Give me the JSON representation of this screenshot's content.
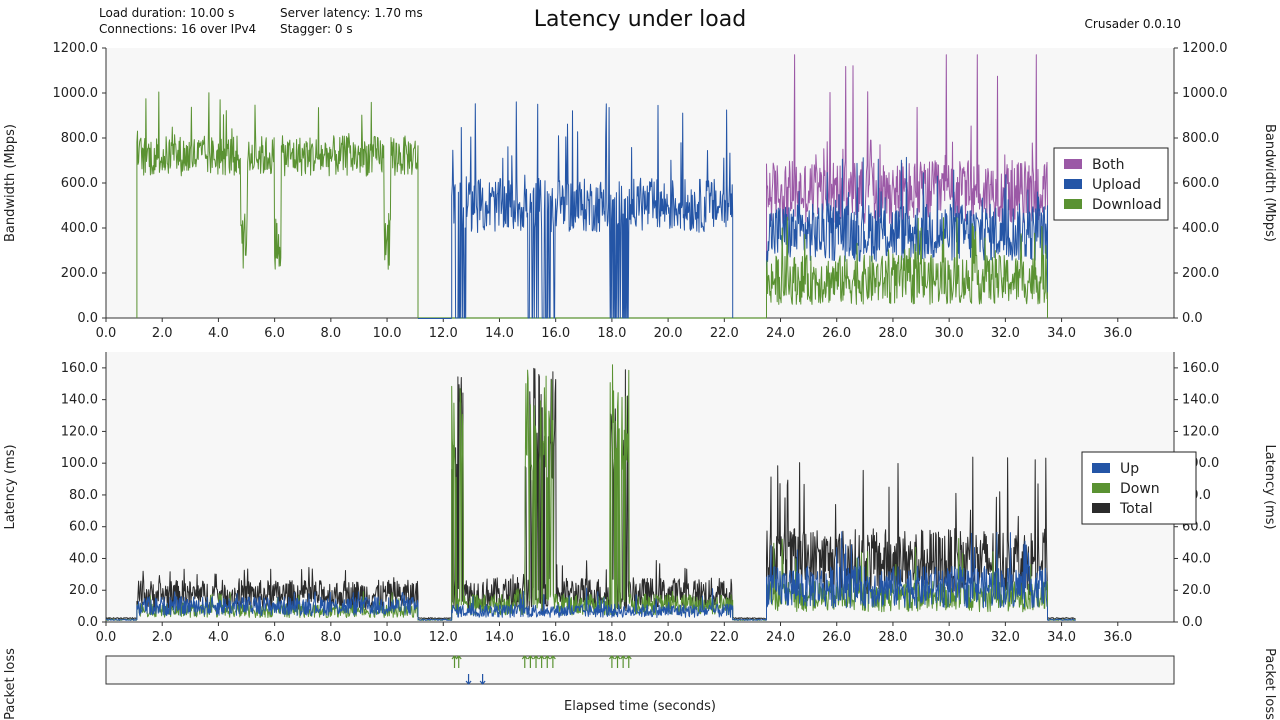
{
  "header": {
    "title": "Latency under load",
    "info_left": [
      "Load duration: 10.00 s",
      "Connections: 16 over IPv4"
    ],
    "info_mid": [
      "Server latency: 1.70 ms",
      "Stagger: 0 s"
    ],
    "app_version": "Crusader 0.0.10"
  },
  "colors": {
    "both": "#9b59a6",
    "upload": "#2455a6",
    "download": "#5a9232",
    "total": "#2b2b2b",
    "plot_bg": "#f7f7f7"
  },
  "chart_data": [
    {
      "id": "bandwidth",
      "type": "line",
      "ylabel": "Bandwidth (Mbps)",
      "xlim": [
        0,
        38
      ],
      "ylim": [
        0,
        1200
      ],
      "x_ticks": [
        "0.0",
        "2.0",
        "4.0",
        "6.0",
        "8.0",
        "10.0",
        "12.0",
        "14.0",
        "16.0",
        "18.0",
        "20.0",
        "22.0",
        "24.0",
        "26.0",
        "28.0",
        "30.0",
        "32.0",
        "34.0",
        "36.0"
      ],
      "y_ticks": [
        "0.0",
        "200.0",
        "400.0",
        "600.0",
        "800.0",
        "1000.0",
        "1200.0"
      ],
      "grid": false,
      "legend_position": "right",
      "series": [
        {
          "name": "Both",
          "color_key": "both",
          "segments": [
            {
              "x_start": 23.5,
              "x_end": 33.5,
              "mean": 560,
              "amplitude": 140,
              "peak": 1170,
              "peaks": [
                24.5,
                29.9,
                31.0,
                33.1
              ]
            }
          ]
        },
        {
          "name": "Upload",
          "color_key": "upload",
          "segments": [
            {
              "x_start": 12.3,
              "x_end": 22.3,
              "mean": 500,
              "amplitude": 120,
              "peak": 970,
              "dropouts": [
                [
                  15.0,
                  16.0
                ],
                [
                  17.9,
                  18.6
                ],
                [
                  12.4,
                  12.8
                ]
              ]
            },
            {
              "x_start": 23.5,
              "x_end": 33.5,
              "mean": 380,
              "amplitude": 130,
              "peak": 720
            }
          ]
        },
        {
          "name": "Download",
          "color_key": "download",
          "segments": [
            {
              "x_start": 1.1,
              "x_end": 11.1,
              "mean": 720,
              "amplitude": 90,
              "peak": 1010,
              "dips": [
                4.9,
                6.1,
                10.0
              ]
            },
            {
              "x_start": 23.5,
              "x_end": 33.5,
              "mean": 170,
              "amplitude": 110,
              "peak": 450
            }
          ]
        }
      ]
    },
    {
      "id": "latency",
      "type": "line",
      "ylabel": "Latency (ms)",
      "xlim": [
        0,
        38
      ],
      "ylim": [
        0,
        170
      ],
      "x_ticks": [
        "0.0",
        "2.0",
        "4.0",
        "6.0",
        "8.0",
        "10.0",
        "12.0",
        "14.0",
        "16.0",
        "18.0",
        "20.0",
        "22.0",
        "24.0",
        "26.0",
        "28.0",
        "30.0",
        "32.0",
        "34.0",
        "36.0"
      ],
      "y_ticks": [
        "0.0",
        "20.0",
        "40.0",
        "60.0",
        "80.0",
        "100.0",
        "120.0",
        "140.0",
        "160.0"
      ],
      "grid": false,
      "legend_position": "right",
      "series": [
        {
          "name": "Up",
          "color_key": "upload"
        },
        {
          "name": "Down",
          "color_key": "download"
        },
        {
          "name": "Total",
          "color_key": "total"
        }
      ],
      "phases": [
        {
          "x_start": 0.0,
          "x_end": 1.1,
          "total": 2,
          "up": 1,
          "down": 1
        },
        {
          "x_start": 1.1,
          "x_end": 11.1,
          "total": 17,
          "up": 10,
          "down": 7,
          "peak": 35
        },
        {
          "x_start": 11.1,
          "x_end": 12.3,
          "total": 2,
          "up": 1,
          "down": 1
        },
        {
          "x_start": 12.3,
          "x_end": 22.3,
          "total": 18,
          "up": 7,
          "down": 11,
          "peak": 40,
          "spike_ranges": [
            [
              12.3,
              12.7
            ],
            [
              14.9,
              16.0
            ],
            [
              17.9,
              18.6
            ]
          ],
          "spike_peak": 162
        },
        {
          "x_start": 22.3,
          "x_end": 23.5,
          "total": 2,
          "up": 1,
          "down": 1
        },
        {
          "x_start": 23.5,
          "x_end": 33.5,
          "total": 38,
          "up": 22,
          "down": 16,
          "peak": 104
        },
        {
          "x_start": 33.5,
          "x_end": 34.5,
          "total": 2,
          "up": 1,
          "down": 1
        }
      ]
    },
    {
      "id": "packet_loss",
      "type": "scatter",
      "ylabel": "Packet loss",
      "xlabel": "Elapsed time (seconds)",
      "xlim": [
        0,
        38
      ],
      "series": [
        {
          "name": "Down",
          "color_key": "download",
          "direction": "down",
          "x": [
            12.4,
            12.55,
            14.9,
            15.1,
            15.3,
            15.5,
            15.7,
            15.9,
            18.0,
            18.2,
            18.4,
            18.6
          ]
        },
        {
          "name": "Up",
          "color_key": "upload",
          "direction": "up",
          "x": [
            12.9,
            13.4
          ]
        }
      ]
    }
  ]
}
